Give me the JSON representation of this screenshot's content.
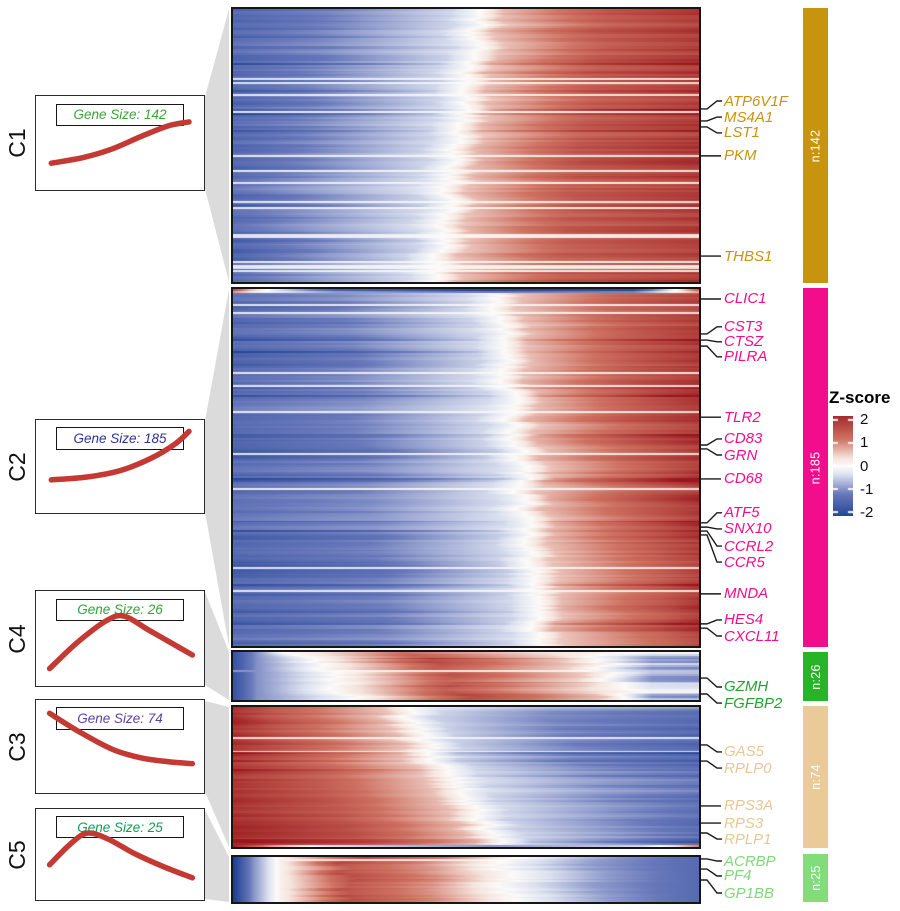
{
  "chart_data": {
    "type": "heatmap",
    "title": "",
    "description": "Smoothed gene-expression Z-score heatmaps along pseudotime for five gene clusters, each with an average-trend inset, labeled marker genes, a cluster-size bar, and a shared Z-score colorbar.",
    "style": {
      "trend_color": "#C23A33",
      "connector_fill": "#DBDBDB",
      "tick_line_color": "#1a1a1a"
    },
    "colormap": {
      "name": "blue-white-red",
      "vmin": -2.5,
      "vmax": 2.5,
      "anchors": [
        [
          -2.5,
          [
            13,
            51,
            137
          ]
        ],
        [
          -1.2,
          [
            104,
            120,
            186
          ]
        ],
        [
          -0.35,
          [
            221,
            226,
            240
          ]
        ],
        [
          0,
          [
            252,
            251,
            249
          ]
        ],
        [
          0.35,
          [
            246,
            229,
            223
          ]
        ],
        [
          1.2,
          [
            206,
            113,
            97
          ]
        ],
        [
          2.5,
          [
            152,
            22,
            28
          ]
        ]
      ]
    },
    "legend": {
      "title": "Z-score",
      "ticks": [
        {
          "label": "2",
          "value": 2
        },
        {
          "label": "1",
          "value": 1
        },
        {
          "label": "0",
          "value": 0
        },
        {
          "label": "-1",
          "value": -1
        },
        {
          "label": "-2",
          "value": -2
        }
      ]
    },
    "clusters": [
      {
        "id": "C1",
        "label": "C1",
        "n": 142,
        "size_label": "Gene Size: 142",
        "bar_label": "n:142",
        "bar_color": "#C8940E",
        "gene_label_color": "#C8940E",
        "size_text_color": "#3BA437",
        "trend_type": "rising-sigmoid",
        "trend_points": [
          [
            0.09,
            0.7
          ],
          [
            0.28,
            0.64
          ],
          [
            0.45,
            0.55
          ],
          [
            0.62,
            0.42
          ],
          [
            0.78,
            0.31
          ],
          [
            0.9,
            0.27
          ]
        ],
        "heat": {
          "type": "rise",
          "seed": 11,
          "c_top": 0.53,
          "c_bot": 0.43
        },
        "markers": [
          {
            "name": "ATP6V1F",
            "tick": 0.366,
            "label": 0.337
          },
          {
            "name": "MS4A1",
            "tick": 0.41,
            "label": 0.396
          },
          {
            "name": "LST1",
            "tick": 0.432,
            "label": 0.454
          },
          {
            "name": "PKM",
            "tick": 0.538,
            "label": 0.538
          },
          {
            "name": "THBS1",
            "tick": 0.905,
            "label": 0.905
          }
        ]
      },
      {
        "id": "C2",
        "label": "C2",
        "n": 185,
        "size_label": "Gene Size: 185",
        "bar_label": "n:185",
        "bar_color": "#F20D8C",
        "gene_label_color": "#F20D8C",
        "size_text_color": "#2B338F",
        "trend_type": "rising-accelerating",
        "trend_points": [
          [
            0.09,
            0.63
          ],
          [
            0.3,
            0.6
          ],
          [
            0.5,
            0.53
          ],
          [
            0.68,
            0.4
          ],
          [
            0.82,
            0.25
          ],
          [
            0.9,
            0.12
          ]
        ],
        "heat": {
          "type": "rise",
          "seed": 22,
          "c_top": 0.57,
          "c_bot": 0.66,
          "special": [
            {
              "row": 0,
              "pts": [
                [
                  0,
                  1.7
                ],
                [
                  0.04,
                  0.6
                ],
                [
                  0.09,
                  -0.3
                ],
                [
                  0.22,
                  -1.7
                ],
                [
                  0.55,
                  -2.2
                ],
                [
                  0.86,
                  -2.1
                ],
                [
                  0.94,
                  -0.3
                ],
                [
                  1,
                  1.5
                ]
              ]
            },
            {
              "row": 1,
              "pts": [
                [
                  0,
                  0.9
                ],
                [
                  0.04,
                  0.3
                ],
                [
                  0.09,
                  -0.2
                ],
                [
                  0.22,
                  -0.9
                ],
                [
                  0.55,
                  -1.2
                ],
                [
                  0.86,
                  -1.1
                ],
                [
                  0.94,
                  -0.1
                ],
                [
                  1,
                  0.8
                ]
              ]
            }
          ]
        },
        "markers": [
          {
            "name": "CLIC1",
            "tick": 0.028,
            "label": 0.028
          },
          {
            "name": "CST3",
            "tick": 0.126,
            "label": 0.106
          },
          {
            "name": "CTSZ",
            "tick": 0.143,
            "label": 0.148
          },
          {
            "name": "PILRA",
            "tick": 0.16,
            "label": 0.19
          },
          {
            "name": "TLR2",
            "tick": 0.359,
            "label": 0.359
          },
          {
            "name": "CD83",
            "tick": 0.437,
            "label": 0.42
          },
          {
            "name": "GRN",
            "tick": 0.448,
            "label": 0.465
          },
          {
            "name": "CD68",
            "tick": 0.532,
            "label": 0.532
          },
          {
            "name": "ATF5",
            "tick": 0.655,
            "label": 0.627
          },
          {
            "name": "SNX10",
            "tick": 0.667,
            "label": 0.672
          },
          {
            "name": "CCRL2",
            "tick": 0.678,
            "label": 0.72
          },
          {
            "name": "CCR5",
            "tick": 0.689,
            "label": 0.765
          },
          {
            "name": "MNDA",
            "tick": 0.854,
            "label": 0.854
          },
          {
            "name": "HES4",
            "tick": 0.938,
            "label": 0.927
          },
          {
            "name": "CXCL11",
            "tick": 0.95,
            "label": 0.972
          }
        ]
      },
      {
        "id": "C4",
        "label": "C4",
        "n": 26,
        "size_label": "Gene Size: 26",
        "bar_label": "n:26",
        "bar_color": "#27B527",
        "gene_label_color": "#21A32B",
        "size_text_color": "#2FA434",
        "trend_type": "mid-peak",
        "trend_points": [
          [
            0.08,
            0.8
          ],
          [
            0.25,
            0.52
          ],
          [
            0.42,
            0.3
          ],
          [
            0.52,
            0.26
          ],
          [
            0.66,
            0.4
          ],
          [
            0.82,
            0.56
          ],
          [
            0.92,
            0.66
          ]
        ],
        "heat": {
          "type": "peak",
          "seed": 44,
          "p_top": 0.4,
          "p_bot": 0.52
        },
        "markers": [
          {
            "name": "GZMH",
            "tick": 0.542,
            "label": 0.729
          },
          {
            "name": "FGFBP2",
            "tick": 0.875,
            "label": 1.063
          }
        ]
      },
      {
        "id": "C3",
        "label": "C3",
        "n": 74,
        "size_label": "Gene Size: 74",
        "bar_label": "n:74",
        "bar_color": "#EACB97",
        "gene_label_color": "#E7C794",
        "size_text_color": "#5D3FA8",
        "trend_type": "falling",
        "trend_points": [
          [
            0.08,
            0.14
          ],
          [
            0.25,
            0.33
          ],
          [
            0.45,
            0.52
          ],
          [
            0.62,
            0.61
          ],
          [
            0.78,
            0.65
          ],
          [
            0.92,
            0.67
          ]
        ],
        "heat": {
          "type": "fall",
          "seed": 33,
          "c_top": 0.36,
          "c_bot": 0.58,
          "special": [
            {
              "row": "last",
              "pts": [
                [
                  0,
                  2.3
                ],
                [
                  0.08,
                  0.9
                ],
                [
                  0.2,
                  -0.3
                ],
                [
                  0.55,
                  -1.0
                ],
                [
                  0.88,
                  -0.4
                ],
                [
                  0.96,
                  0.5
                ],
                [
                  1,
                  1.1
                ]
              ]
            }
          ]
        },
        "markers": [
          {
            "name": "GAS5",
            "tick": 0.271,
            "label": 0.321
          },
          {
            "name": "RPLP0",
            "tick": 0.386,
            "label": 0.436
          },
          {
            "name": "RPS3A",
            "tick": 0.707,
            "label": 0.707
          },
          {
            "name": "RPS3",
            "tick": 0.829,
            "label": 0.829
          },
          {
            "name": "RPLP1",
            "tick": 0.9,
            "label": 0.943
          }
        ]
      },
      {
        "id": "C5",
        "label": "C5",
        "n": 25,
        "size_label": "Gene Size: 25",
        "bar_label": "n:25",
        "bar_color": "#82DC79",
        "gene_label_color": "#7FD877",
        "size_text_color": "#0E9E53",
        "trend_type": "early-peak-falling",
        "trend_points": [
          [
            0.08,
            0.6
          ],
          [
            0.2,
            0.38
          ],
          [
            0.3,
            0.26
          ],
          [
            0.42,
            0.32
          ],
          [
            0.58,
            0.48
          ],
          [
            0.75,
            0.62
          ],
          [
            0.92,
            0.74
          ]
        ],
        "heat": {
          "type": "earlypeak",
          "seed": 55,
          "p": 0.25
        },
        "markers": [
          {
            "name": "ACRBP",
            "tick": 0.044,
            "label": 0.089
          },
          {
            "name": "PF4",
            "tick": 0.267,
            "label": 0.422
          },
          {
            "name": "GP1BB",
            "tick": 0.511,
            "label": 0.8
          }
        ]
      }
    ]
  }
}
